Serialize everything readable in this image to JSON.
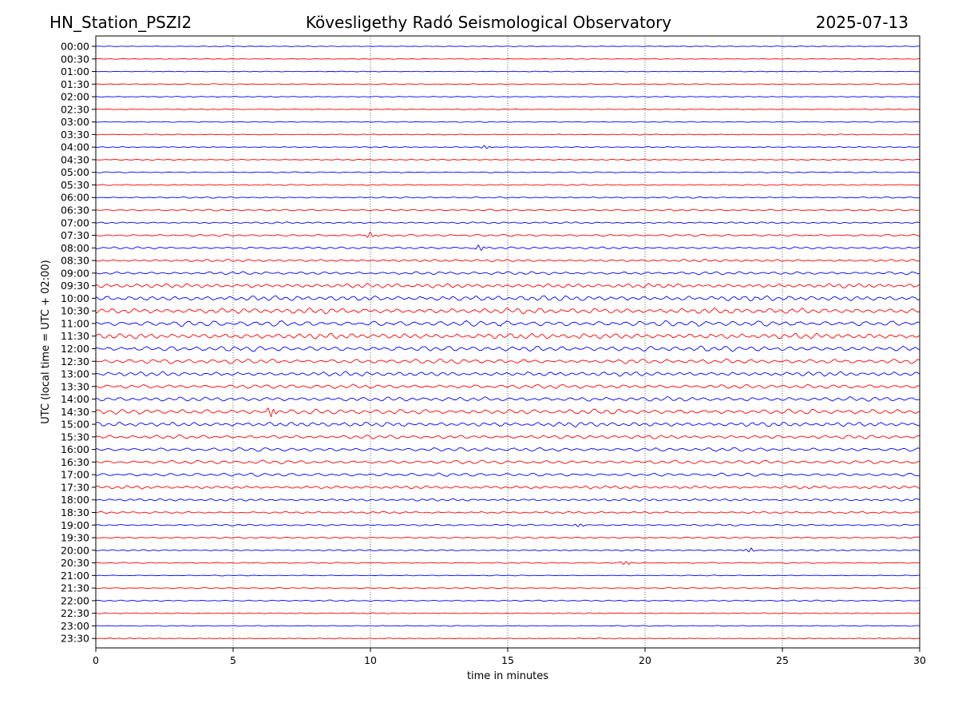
{
  "header": {
    "station": "HN_Station_PSZI2",
    "observatory": "Kövesligethy Radó Seismological Observatory",
    "date": "2025-07-13"
  },
  "chart_data": {
    "type": "line",
    "xlabel": "time in minutes",
    "ylabel": "UTC (local time = UTC + 02:00)",
    "xlim": [
      0,
      30
    ],
    "x_ticks": [
      "0",
      "5",
      "10",
      "15",
      "20",
      "25",
      "30"
    ],
    "x_grid": "dotted vertical at every 5 minutes",
    "row_labels": [
      "00:00",
      "00:30",
      "01:00",
      "01:30",
      "02:00",
      "02:30",
      "03:00",
      "03:30",
      "04:00",
      "04:30",
      "05:00",
      "05:30",
      "06:00",
      "06:30",
      "07:00",
      "07:30",
      "08:00",
      "08:30",
      "09:00",
      "09:30",
      "10:00",
      "10:30",
      "11:00",
      "11:30",
      "12:00",
      "12:30",
      "13:00",
      "13:30",
      "14:00",
      "14:30",
      "15:00",
      "15:30",
      "16:00",
      "16:30",
      "17:00",
      "17:30",
      "18:00",
      "18:30",
      "19:00",
      "19:30",
      "20:00",
      "20:30",
      "21:00",
      "21:30",
      "22:00",
      "22:30",
      "23:00",
      "23:30"
    ],
    "trace_colors": [
      "#0000ff",
      "#ff0000"
    ],
    "relative_amplitude_per_row": [
      0.5,
      0.5,
      0.5,
      0.55,
      0.55,
      0.6,
      0.6,
      0.65,
      0.65,
      0.7,
      0.7,
      0.8,
      0.9,
      1.0,
      1.1,
      1.3,
      1.4,
      1.6,
      2.0,
      2.8,
      3.4,
      3.6,
      3.6,
      3.6,
      3.4,
      3.0,
      2.8,
      2.6,
      2.8,
      3.2,
      3.0,
      2.4,
      2.4,
      2.4,
      2.2,
      2.0,
      1.6,
      1.3,
      1.1,
      1.0,
      0.9,
      0.8,
      0.55,
      0.6,
      0.8,
      0.7,
      0.6,
      0.6
    ],
    "events": [
      {
        "row": "04:00",
        "minute": 14.2,
        "amplitude": 2.5
      },
      {
        "row": "07:30",
        "minute": 10.0,
        "amplitude": 4
      },
      {
        "row": "08:00",
        "minute": 14.0,
        "amplitude": 5
      },
      {
        "row": "14:30",
        "minute": 6.4,
        "amplitude": 8
      },
      {
        "row": "19:00",
        "minute": 17.6,
        "amplitude": 3
      },
      {
        "row": "20:00",
        "minute": 23.8,
        "amplitude": 3
      },
      {
        "row": "20:30",
        "minute": 19.3,
        "amplitude": 3
      }
    ]
  }
}
